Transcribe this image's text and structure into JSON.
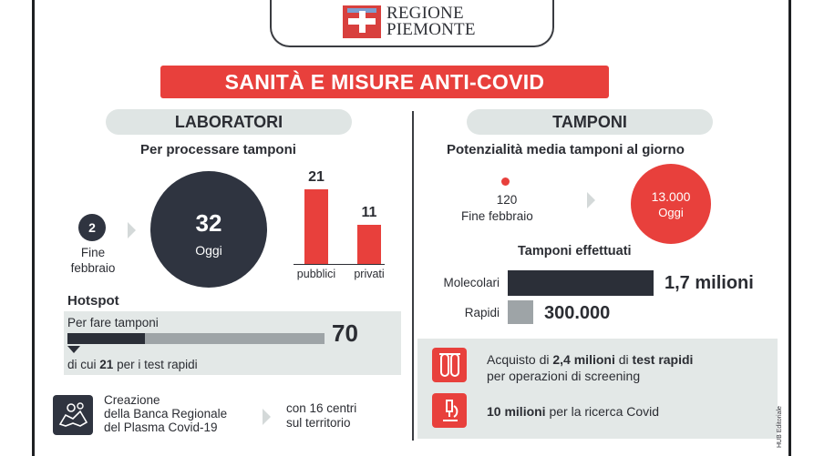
{
  "logo": {
    "line1": "REGIONE",
    "line2": "PIEMONTE"
  },
  "title": "SANITÀ E MISURE ANTI-COVID",
  "laboratori": {
    "heading": "LABORATORI",
    "subheading": "Per processare tamponi",
    "before_value": "2",
    "before_label_1": "Fine",
    "before_label_2": "febbraio",
    "today_value": "32",
    "today_label": "Oggi",
    "bars": [
      {
        "label": "pubblici",
        "value": "21",
        "num": 21
      },
      {
        "label": "privati",
        "value": "11",
        "num": 11
      }
    ]
  },
  "hotspot": {
    "heading": "Hotspot",
    "label": "Per fare tamponi",
    "value": "70",
    "note_prefix": "di cui ",
    "note_value": "21",
    "note_suffix": " per i test rapidi",
    "fraction": 0.3
  },
  "plasma": {
    "line1": "Creazione",
    "line2": "della Banca Regionale",
    "line3": "del Plasma Covid-19",
    "detail1": "con 16 centri",
    "detail2": "sul territorio"
  },
  "tamponi": {
    "heading": "TAMPONI",
    "subheading": "Potenzialità media tamponi al giorno",
    "before_value": "120",
    "before_label": "Fine febbraio",
    "today_value": "13.000",
    "today_label": "Oggi",
    "done_heading": "Tamponi effettuati",
    "rows": [
      {
        "label": "Molecolari",
        "value": "1,7 milioni",
        "num": 1700000
      },
      {
        "label": "Rapidi",
        "value": "300.000",
        "num": 300000
      }
    ]
  },
  "info": {
    "item1_prefix": "Acquisto di ",
    "item1_bold1": "2,4 milioni",
    "item1_mid": " di ",
    "item1_bold2": "test rapidi",
    "item1_line2": "per operazioni di screening",
    "item2_bold": "10 milioni",
    "item2_rest": " per la ricerca Covid"
  },
  "credit": "HUB Editoriale",
  "colors": {
    "accent": "#e8403c",
    "dark": "#2b2f38",
    "grey": "#9ea4a7",
    "panel": "#e3e8e7"
  }
}
